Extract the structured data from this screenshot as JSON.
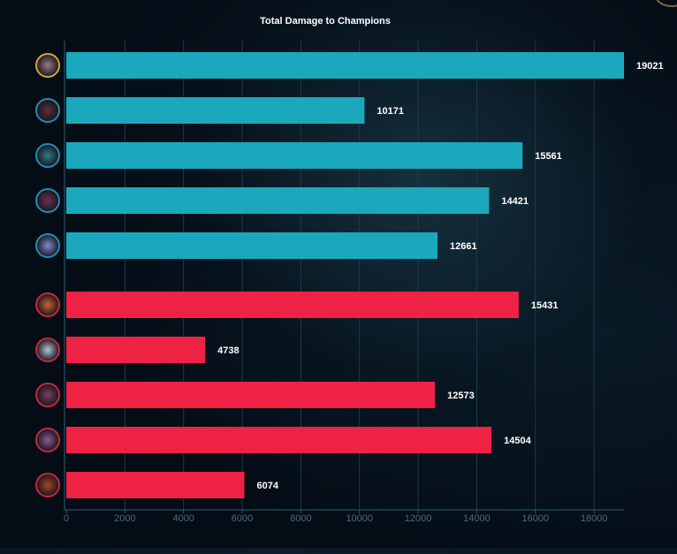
{
  "chart_data": {
    "type": "bar",
    "orientation": "horizontal",
    "title": "Total Damage to Champions",
    "xlabel": "",
    "ylabel": "",
    "xlim": [
      0,
      19021
    ],
    "xticks": [
      0,
      2000,
      4000,
      6000,
      8000,
      10000,
      12000,
      14000,
      16000,
      18000
    ],
    "grid": true,
    "legend": "none",
    "series": [
      {
        "team": "blue",
        "color": "#1ba8bd",
        "ring_color": "#d4a832",
        "values": [
          19021,
          10171,
          15561,
          14421,
          12661
        ],
        "icons": [
          "champion-portrait",
          "champion-portrait",
          "champion-portrait",
          "champion-portrait",
          "champion-portrait"
        ]
      },
      {
        "team": "red",
        "color": "#ee2244",
        "ring_color": "#c22a3a",
        "values": [
          15431,
          4738,
          12573,
          14504,
          6074
        ],
        "icons": [
          "champion-portrait",
          "champion-portrait",
          "champion-portrait",
          "champion-portrait",
          "champion-portrait"
        ]
      }
    ]
  },
  "colors": {
    "background": "#040c15",
    "gridline": "#1d3a48",
    "axis": "#2a6272",
    "tick_text": "#4d6a78",
    "label_text": "#ffffff",
    "highlight_ring": "#d4a832",
    "blue_ring": "#1f8fb0"
  }
}
